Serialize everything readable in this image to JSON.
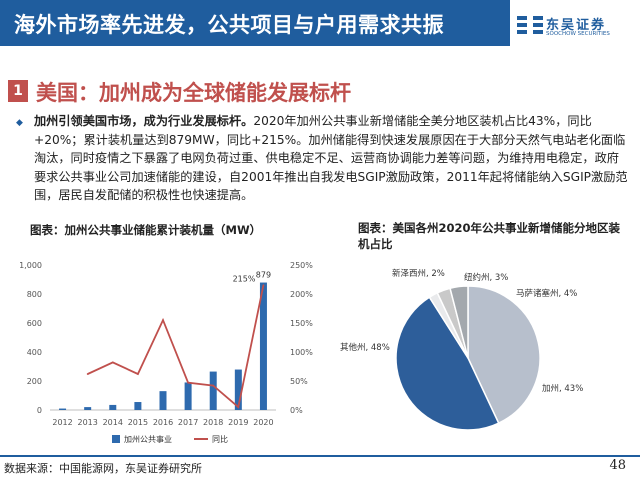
{
  "header": {
    "title": "海外市场率先进发，公共项目与户用需求共振"
  },
  "logo": {
    "name_cn": "东吴证券",
    "name_en": "SOOCHOW SECURITIES"
  },
  "section": {
    "number": "1",
    "title": "美国：加州成为全球储能发展标杆"
  },
  "paragraph": {
    "lead": "加州引领美国市场，成为行业发展标杆。",
    "body": "2020年加州公共事业新增储能全美分地区装机占比43%，同比+20%；累计装机量达到879MW，同比+215%。加州储能得到快速发展原因在于大部分天然气电站老化面临淘汰，同时疫情之下暴露了电网负荷过重、供电稳定不足、运营商协调能力差等问题，为维持用电稳定，政府要求公共事业公司加速储能的建设，自2001年推出自我发电SGIP激励政策，2011年起将储能纳入SGIP激励范围，居民自发配储的积极性也快速提高。"
  },
  "charts": {
    "left_title": "图表：加州公共事业储能累计装机量（MW）",
    "right_title": "图表：美国各州2020年公共事业新增储能分地区装机占比"
  },
  "chart_data": [
    {
      "type": "bar",
      "title": "图表：加州公共事业储能累计装机量（MW）",
      "categories": [
        "2012",
        "2013",
        "2014",
        "2015",
        "2016",
        "2017",
        "2018",
        "2019",
        "2020"
      ],
      "series": [
        {
          "name": "加州公共事业",
          "type": "bar",
          "axis": "left",
          "values": [
            10,
            20,
            35,
            55,
            130,
            190,
            265,
            279,
            879
          ],
          "color": "#2e6aae"
        },
        {
          "name": "同比",
          "type": "line",
          "axis": "right",
          "values": [
            null,
            62,
            82,
            62,
            155,
            47,
            42,
            5,
            215
          ],
          "color": "#c0504d"
        }
      ],
      "yticks_left": [
        "0",
        "200",
        "400",
        "600",
        "800",
        "1,000"
      ],
      "yticks_right": [
        "0%",
        "50%",
        "100%",
        "150%",
        "200%",
        "250%"
      ],
      "ylim_left": [
        0,
        1000
      ],
      "ylim_right": [
        0,
        250
      ],
      "labels": {
        "bar_last": "879",
        "line_last": "215%"
      },
      "legend_position": "bottom"
    },
    {
      "type": "pie",
      "title": "图表：美国各州2020年公共事业新增储能分地区装机占比",
      "slices": [
        {
          "label": "加州, 43%",
          "value": 43,
          "color": "#b7bfcc"
        },
        {
          "label": "其他州, 48%",
          "value": 48,
          "color": "#2d5e9a"
        },
        {
          "label": "新泽西州, 2%",
          "value": 2,
          "color": "#e9eaec"
        },
        {
          "label": "纽约州, 3%",
          "value": 3,
          "color": "#c9c9c9"
        },
        {
          "label": "马萨诸塞州, 4%",
          "value": 4,
          "color": "#a3a8ad"
        }
      ]
    }
  ],
  "footer": {
    "source": "数据来源：中国能源网，东吴证券研究所",
    "page": "48"
  }
}
